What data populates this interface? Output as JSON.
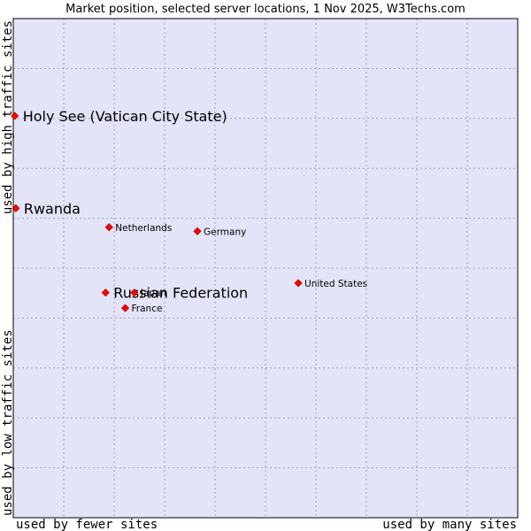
{
  "chart_data": {
    "type": "scatter",
    "title": "Market position, selected server locations, 1 Nov 2025, W3Techs.com",
    "xlabel_left": "used by fewer sites",
    "xlabel_right": "used by many sites",
    "ylabel_bottom": "used by low traffic sites",
    "ylabel_top": "used by high traffic sites",
    "xlim": [
      0,
      100
    ],
    "ylim": [
      0,
      100
    ],
    "grid": true,
    "colors": {
      "plot_bg": "#e4e4f8",
      "grid": "#a0a0b8",
      "border": "#000000",
      "marker": "#ff0000",
      "marker_edge": "#b00000"
    },
    "points": [
      {
        "label": "Holy See (Vatican City State)",
        "x": 0.3,
        "y": 80.5,
        "emphasis": true
      },
      {
        "label": "Rwanda",
        "x": 0.5,
        "y": 62.0,
        "emphasis": true
      },
      {
        "label": "Netherlands",
        "x": 19.0,
        "y": 58.2,
        "emphasis": false
      },
      {
        "label": "Germany",
        "x": 36.5,
        "y": 57.4,
        "emphasis": false
      },
      {
        "label": "United States",
        "x": 56.5,
        "y": 47.0,
        "emphasis": false
      },
      {
        "label": "Russian Federation",
        "x": 18.3,
        "y": 45.1,
        "emphasis": true
      },
      {
        "label": "Japan",
        "x": 24.0,
        "y": 45.1,
        "emphasis": false
      },
      {
        "label": "France",
        "x": 22.2,
        "y": 42.0,
        "emphasis": false
      }
    ]
  }
}
